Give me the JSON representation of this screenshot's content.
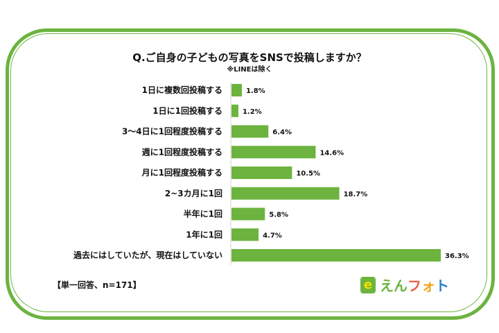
{
  "chart_data": {
    "type": "bar",
    "orientation": "horizontal",
    "title": "Q.ご自身の子どもの写真をSNSで投稿しますか？",
    "subtitle": "※LINEは除く",
    "categories": [
      "1日に複数回投稿する",
      "1日に1回投稿する",
      "3～4日に1回程度投稿する",
      "週に1回程度投稿する",
      "月に1回程度投稿する",
      "2~3カ月に1回",
      "半年に1回",
      "1年に1回",
      "過去にはしていたが、現在はしていない"
    ],
    "values": [
      1.8,
      1.2,
      6.4,
      14.6,
      10.5,
      18.7,
      5.8,
      4.7,
      36.3
    ],
    "labels": [
      "1.8%",
      "1.2%",
      "6.4%",
      "14.6%",
      "10.5%",
      "18.7%",
      "5.8%",
      "4.7%",
      "36.3%"
    ],
    "unit": "%",
    "xlim": [
      0,
      40
    ],
    "grid": false,
    "bar_color": "#6db33f"
  },
  "note": "【単一回答、n=171】",
  "logo": {
    "text": "えんフォト",
    "icon": "e",
    "colors": [
      "#6db33f",
      "#6db33f",
      "#e8604c",
      "#f2a31b",
      "#2a7fc8"
    ]
  }
}
